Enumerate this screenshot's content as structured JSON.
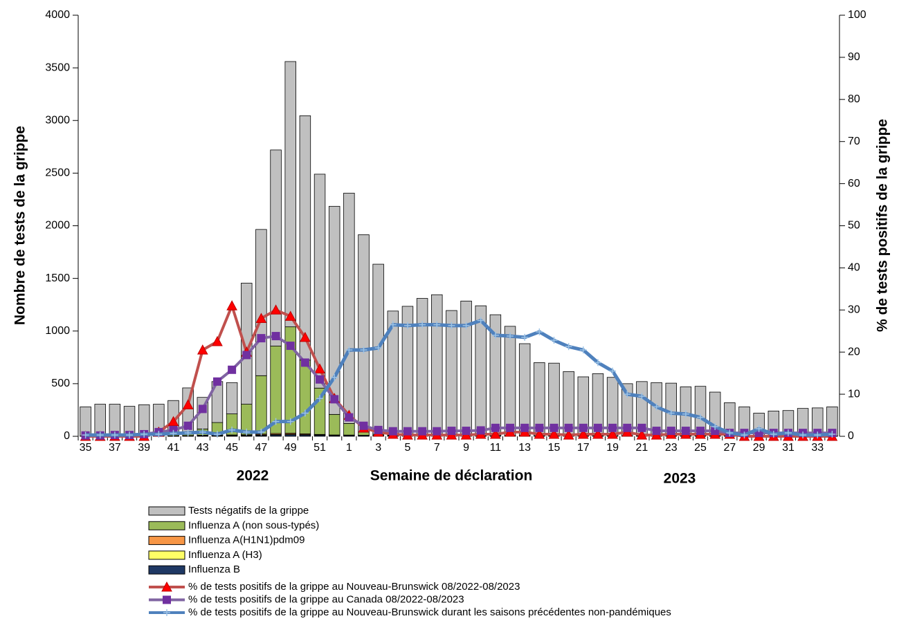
{
  "chart_data": {
    "type": "bar",
    "stacked": true,
    "x_label": "Semaine de déclaration",
    "y_label": "Nombre de tests de la grippe",
    "y2_label": "% de tests positifs de la grippe",
    "annotations": [
      "2022",
      "2023"
    ],
    "legend": "bottom",
    "categories": [
      "35",
      null,
      "37",
      null,
      "39",
      null,
      "41",
      null,
      "43",
      null,
      "45",
      null,
      "47",
      null,
      "49",
      null,
      "51",
      null,
      "1",
      null,
      "3",
      null,
      "5",
      null,
      "7",
      null,
      "9",
      null,
      "11",
      null,
      "13",
      null,
      "15",
      null,
      "17",
      null,
      "19",
      null,
      "21",
      null,
      "23",
      null,
      "25",
      null,
      "27",
      null,
      "29",
      null,
      "31",
      null,
      "33",
      null
    ],
    "ylim": [
      0,
      4000
    ],
    "yticks": [
      0,
      500,
      1000,
      1500,
      2000,
      2500,
      3000,
      3500,
      4000
    ],
    "y2lim": [
      0,
      100
    ],
    "y2ticks": [
      0,
      10,
      20,
      30,
      40,
      50,
      60,
      70,
      80,
      90,
      100
    ],
    "series": [
      {
        "name": "Tests négatifs de la grippe",
        "type": "bar",
        "color": "#c0c0c0",
        "values": [
          277,
          302,
          302,
          282,
          296,
          300,
          326,
          428,
          300,
          389,
          297,
          1150,
          1389,
          1863,
          2520,
          2321,
          2032,
          1977,
          2188,
          1875,
          1615,
          1177,
          1225,
          1300,
          1336,
          1187,
          1277,
          1232,
          1147,
          1037,
          872,
          694,
          689,
          609,
          560,
          590,
          555,
          495,
          515,
          505,
          500,
          465,
          470,
          416,
          316,
          277,
          217,
          237,
          242,
          262,
          267,
          277
        ]
      },
      {
        "name": "Influenza A (non sous-typés)",
        "type": "bar",
        "color": "#9bbb59",
        "values": [
          2,
          2,
          2,
          2,
          3,
          3,
          10,
          25,
          60,
          120,
          200,
          290,
          555,
          830,
          1010,
          700,
          440,
          195,
          110,
          30,
          10,
          5,
          3,
          3,
          3,
          2,
          2,
          2,
          2,
          2,
          2,
          2,
          2,
          2,
          2,
          2,
          2,
          2,
          2,
          2,
          2,
          2,
          2,
          2,
          1,
          1,
          1,
          1,
          1,
          1,
          1,
          1
        ]
      },
      {
        "name": "Influenza A(H1N1)pdm09",
        "type": "bar",
        "color": "#f79646",
        "values": [
          0,
          0,
          0,
          0,
          0,
          0,
          1,
          2,
          3,
          3,
          5,
          5,
          8,
          10,
          10,
          8,
          5,
          3,
          2,
          1,
          1,
          1,
          1,
          1,
          1,
          1,
          1,
          1,
          1,
          1,
          1,
          0,
          0,
          0,
          0,
          0,
          0,
          0,
          0,
          0,
          0,
          0,
          0,
          0,
          0,
          0,
          0,
          0,
          0,
          0,
          0,
          0
        ]
      },
      {
        "name": "Influenza A (H3)",
        "type": "bar",
        "color": "#ffff66",
        "values": [
          0,
          0,
          0,
          0,
          0,
          1,
          2,
          3,
          5,
          5,
          5,
          5,
          5,
          5,
          5,
          4,
          3,
          2,
          2,
          1,
          1,
          1,
          1,
          1,
          0,
          0,
          0,
          0,
          0,
          0,
          0,
          0,
          0,
          0,
          0,
          0,
          0,
          0,
          0,
          0,
          0,
          0,
          0,
          0,
          0,
          0,
          0,
          0,
          0,
          0,
          0,
          0
        ]
      },
      {
        "name": "Influenza B",
        "type": "bar",
        "color": "#1f3864",
        "values": [
          1,
          1,
          1,
          1,
          1,
          1,
          1,
          2,
          2,
          3,
          3,
          5,
          8,
          12,
          15,
          12,
          10,
          8,
          8,
          8,
          8,
          6,
          5,
          5,
          5,
          5,
          5,
          5,
          5,
          5,
          5,
          4,
          4,
          4,
          3,
          3,
          3,
          3,
          3,
          3,
          3,
          3,
          3,
          2,
          2,
          2,
          2,
          2,
          2,
          2,
          2,
          2
        ]
      },
      {
        "name": "% de tests positifs de la grippe  au Nouveau-Brunswick 08/2022-08/2023",
        "type": "line",
        "axis": "y2",
        "color": "#c0504d",
        "marker": "triangle",
        "marker_color": "#ff0000",
        "values": [
          0,
          0,
          0,
          0,
          0,
          1,
          3.5,
          7.5,
          20.5,
          22.5,
          31,
          20,
          28,
          30,
          28.5,
          23.5,
          16,
          9,
          5,
          2,
          1,
          0.5,
          0.3,
          0.3,
          0.3,
          0.3,
          0.3,
          0.5,
          0.5,
          1,
          1,
          0.5,
          0.5,
          0.3,
          0.5,
          0.5,
          0.5,
          1,
          0.3,
          0.3,
          0.5,
          0.5,
          0.5,
          0.5,
          0.5,
          0,
          0,
          0,
          0,
          0,
          0,
          0
        ]
      },
      {
        "name": "% de tests positifs de la grippe  au Canada 08/2022-08/2023",
        "type": "line",
        "axis": "y2",
        "color": "#8064a2",
        "marker": "square",
        "marker_color": "#7030a0",
        "values": [
          0.2,
          0.2,
          0.3,
          0.3,
          0.5,
          1,
          1.5,
          2.5,
          6.5,
          13,
          15.8,
          19.3,
          23.3,
          23.8,
          21.5,
          17.5,
          13.5,
          8.8,
          4.5,
          2.5,
          1.5,
          1.2,
          1.2,
          1.2,
          1.2,
          1.3,
          1.3,
          1.4,
          2,
          2,
          2,
          2,
          2,
          2,
          2,
          2,
          2,
          2,
          2,
          1.3,
          1.3,
          1.3,
          1.3,
          1.3,
          0.8,
          0.8,
          0.8,
          0.8,
          0.8,
          0.8,
          0.8,
          0.8
        ]
      },
      {
        "name": "% de tests positifs de la grippe  au Nouveau-Brunswick durant les saisons précédentes non-pandémiques",
        "type": "line",
        "axis": "y2",
        "color": "#4f81bd",
        "marker": "plus",
        "marker_color": "#9dc3e6",
        "values": [
          0.3,
          0.3,
          0.3,
          0.3,
          0.5,
          0.5,
          0.7,
          0.8,
          1,
          0.5,
          1.5,
          1,
          1,
          3.5,
          3.5,
          5.5,
          9,
          14,
          20.5,
          20.5,
          21,
          26.5,
          26.3,
          26.5,
          26.5,
          26.3,
          26.3,
          27.5,
          24,
          23.8,
          23.5,
          24.8,
          22.8,
          21.3,
          20.5,
          17.5,
          15.5,
          10,
          9.5,
          7,
          5.5,
          5.3,
          4.5,
          2.3,
          0.8,
          0.3,
          1.8,
          0.5,
          0.8,
          0.3,
          0.3,
          0.5
        ]
      }
    ]
  }
}
